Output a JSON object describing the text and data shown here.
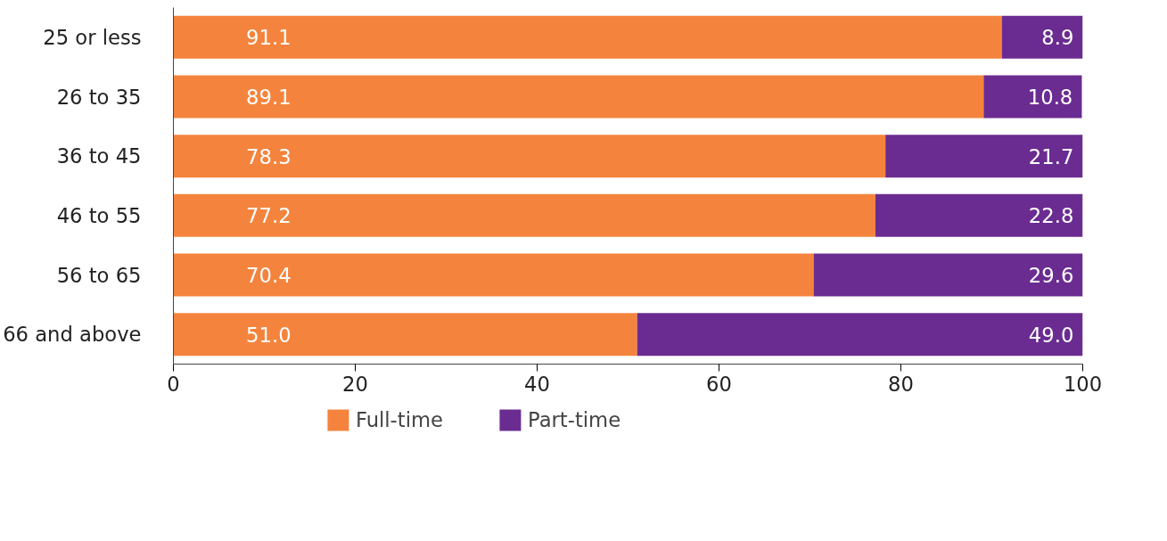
{
  "chart_data": {
    "type": "bar",
    "orientation": "horizontal",
    "stacked": true,
    "categories": [
      "25 or less",
      "26 to 35",
      "36 to 45",
      "46 to 55",
      "56 to 65",
      "66 and above"
    ],
    "series": [
      {
        "name": "Full-time",
        "color": "#f4843d",
        "values": [
          91.1,
          89.1,
          78.3,
          77.2,
          70.4,
          51.0
        ],
        "value_labels": [
          "91.1",
          "89.1",
          "78.3",
          "77.2",
          "70.4",
          "51.0"
        ]
      },
      {
        "name": "Part-time",
        "color": "#6a2c91",
        "values": [
          8.9,
          10.8,
          21.7,
          22.8,
          29.6,
          49.0
        ],
        "value_labels": [
          "8.9",
          "10.8",
          "21.7",
          "22.8",
          "29.6",
          "49.0"
        ]
      }
    ],
    "xlim": [
      0,
      100
    ],
    "xticks": [
      0,
      20,
      40,
      60,
      80,
      100
    ],
    "grid": false,
    "legend": "bottom"
  }
}
